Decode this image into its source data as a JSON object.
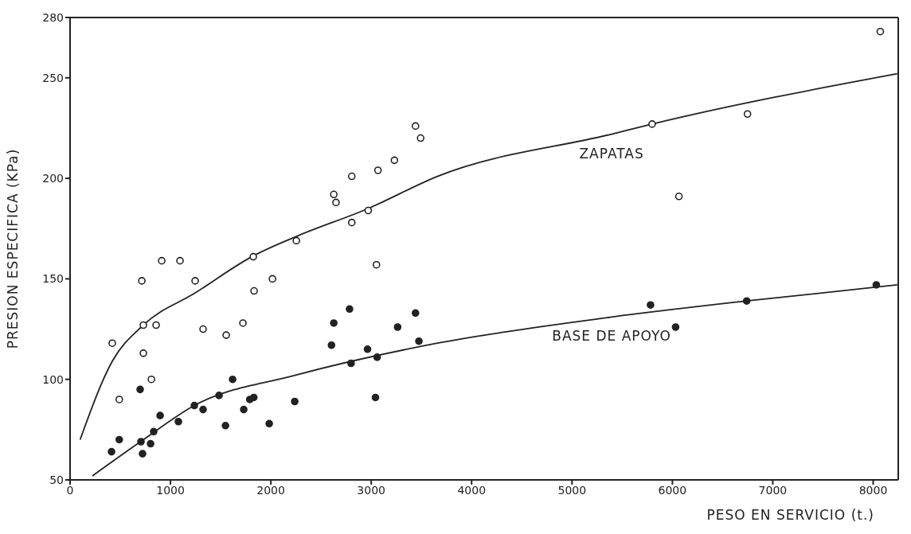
{
  "chart_data": {
    "type": "scatter",
    "xlabel": "PESO EN SERVICIO (t.)",
    "ylabel": "PRESION ESPECIFICA (KPa)",
    "xlim": [
      0,
      8250
    ],
    "ylim": [
      50,
      280
    ],
    "xticks": [
      0,
      1000,
      2000,
      3000,
      4000,
      5000,
      6000,
      7000,
      8000
    ],
    "yticks": [
      50,
      100,
      150,
      200,
      250,
      280
    ],
    "grid": false,
    "legend": false,
    "series": [
      {
        "marker": "circle",
        "color": "#ffffff",
        "x": [
          420,
          490,
          730,
          857,
          730,
          810,
          715,
          913,
          1095,
          1246,
          1325,
          1555,
          1722,
          1833,
          1825,
          2016,
          2254,
          2627,
          2649,
          2806,
          2806,
          2970,
          3067,
          3052,
          3231,
          3441,
          3492,
          5798,
          6065,
          6748,
          8071
        ],
        "values": [
          118,
          90,
          127,
          127,
          113,
          100,
          149,
          159,
          159,
          149,
          125,
          122,
          128,
          144,
          161,
          150,
          169,
          192,
          188,
          201,
          178,
          184,
          204,
          157,
          209,
          226,
          220,
          227,
          191,
          232,
          273
        ]
      },
      {
        "marker": "circle",
        "color": "#222222",
        "x": [
          413,
          490,
          698,
          722,
          706,
          802,
          833,
          897,
          1079,
          1238,
          1325,
          1484,
          1548,
          1619,
          1730,
          1790,
          1830,
          1984,
          2238,
          2627,
          2604,
          2784,
          2799,
          2963,
          3059,
          3042,
          3263,
          3441,
          3475,
          5782,
          6032,
          6740,
          8031
        ],
        "values": [
          64,
          70,
          95,
          63,
          69,
          68,
          74,
          82,
          79,
          87,
          85,
          92,
          77,
          100,
          85,
          90,
          91,
          78,
          89,
          128,
          117,
          135,
          108,
          115,
          111,
          91,
          126,
          133,
          119,
          137,
          126,
          139,
          147
        ]
      },
      {
        "type": "line",
        "name": "ZAPATAS",
        "marker": "none",
        "line_style": "solid",
        "color": "#222222",
        "x": [
          100,
          420,
          730,
          1246,
          1810,
          2250,
          2970,
          3660,
          5395,
          5798,
          8240
        ],
        "values": [
          70,
          109,
          127,
          143,
          161,
          171,
          185,
          201,
          222,
          227,
          252
        ]
      },
      {
        "type": "line",
        "name": "BASE DE APOYO",
        "marker": "none",
        "line_style": "solid",
        "color": "#222222",
        "x": [
          222,
          730,
          1238,
          2239,
          3660,
          5395,
          6740,
          8240
        ],
        "values": [
          52,
          70,
          87,
          102,
          118,
          131,
          139,
          147
        ]
      }
    ]
  }
}
